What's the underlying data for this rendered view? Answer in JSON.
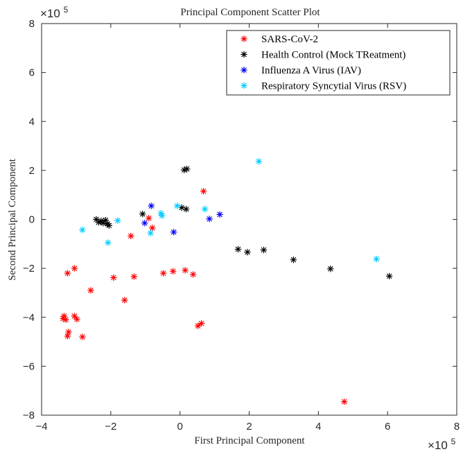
{
  "chart_data": {
    "type": "scatter",
    "title": "Principal Component Scatter Plot",
    "xlabel": "First Principal Component",
    "ylabel": "Second Principal Component",
    "x_exponent_label": "×10",
    "x_exponent_power": "5",
    "y_exponent_label": "×10",
    "y_exponent_power": "5",
    "xlim": [
      -4,
      8
    ],
    "ylim": [
      -8,
      8
    ],
    "xticks": [
      -4,
      -2,
      0,
      2,
      4,
      6,
      8
    ],
    "yticks": [
      -8,
      -6,
      -4,
      -2,
      0,
      2,
      4,
      6,
      8
    ],
    "grid": false,
    "legend_placement": "top-right",
    "series": [
      {
        "name": "SARS-CoV-2",
        "color": "#ff0000",
        "points": [
          {
            "x": -3.38,
            "y": -4.05
          },
          {
            "x": -3.35,
            "y": -3.95
          },
          {
            "x": -3.3,
            "y": -4.1
          },
          {
            "x": -3.25,
            "y": -4.77
          },
          {
            "x": -3.22,
            "y": -4.6
          },
          {
            "x": -3.25,
            "y": -2.2
          },
          {
            "x": -3.05,
            "y": -2.0
          },
          {
            "x": -3.05,
            "y": -3.95
          },
          {
            "x": -2.98,
            "y": -4.08
          },
          {
            "x": -2.82,
            "y": -4.8
          },
          {
            "x": -2.58,
            "y": -2.9
          },
          {
            "x": -1.92,
            "y": -2.38
          },
          {
            "x": -1.6,
            "y": -3.3
          },
          {
            "x": -1.42,
            "y": -0.68
          },
          {
            "x": -1.33,
            "y": -2.34
          },
          {
            "x": -0.9,
            "y": 0.05
          },
          {
            "x": -0.8,
            "y": -0.35
          },
          {
            "x": -0.48,
            "y": -2.2
          },
          {
            "x": -0.2,
            "y": -2.12
          },
          {
            "x": 0.15,
            "y": -2.08
          },
          {
            "x": 0.38,
            "y": -2.25
          },
          {
            "x": 0.52,
            "y": -4.35
          },
          {
            "x": 0.62,
            "y": -4.25
          },
          {
            "x": 0.68,
            "y": 1.15
          },
          {
            "x": 4.75,
            "y": -7.45
          }
        ]
      },
      {
        "name": "Health Control (Mock TReatment)",
        "color": "#000000",
        "points": [
          {
            "x": -2.42,
            "y": 0.0
          },
          {
            "x": -2.35,
            "y": -0.12
          },
          {
            "x": -2.28,
            "y": -0.06
          },
          {
            "x": -2.22,
            "y": -0.15
          },
          {
            "x": -2.15,
            "y": -0.03
          },
          {
            "x": -2.1,
            "y": -0.18
          },
          {
            "x": -2.05,
            "y": -0.25
          },
          {
            "x": -1.08,
            "y": 0.22
          },
          {
            "x": 0.05,
            "y": 0.48
          },
          {
            "x": 0.18,
            "y": 0.42
          },
          {
            "x": 0.12,
            "y": 2.02
          },
          {
            "x": 0.2,
            "y": 2.06
          },
          {
            "x": 1.68,
            "y": -1.22
          },
          {
            "x": 1.95,
            "y": -1.34
          },
          {
            "x": 2.42,
            "y": -1.25
          },
          {
            "x": 3.28,
            "y": -1.65
          },
          {
            "x": 4.35,
            "y": -2.02
          },
          {
            "x": 6.05,
            "y": -2.32
          }
        ]
      },
      {
        "name": "Influenza A Virus (IAV)",
        "color": "#0000ff",
        "points": [
          {
            "x": -1.02,
            "y": -0.15
          },
          {
            "x": -0.83,
            "y": 0.55
          },
          {
            "x": -0.18,
            "y": -0.52
          },
          {
            "x": 0.85,
            "y": 0.02
          },
          {
            "x": 1.15,
            "y": 0.2
          }
        ]
      },
      {
        "name": "Respiratory Syncytial Virus (RSV)",
        "color": "#00ccff",
        "points": [
          {
            "x": -2.82,
            "y": -0.43
          },
          {
            "x": -2.08,
            "y": -0.95
          },
          {
            "x": -1.8,
            "y": -0.05
          },
          {
            "x": -0.85,
            "y": -0.56
          },
          {
            "x": -0.55,
            "y": 0.25
          },
          {
            "x": -0.52,
            "y": 0.15
          },
          {
            "x": -0.08,
            "y": 0.55
          },
          {
            "x": 0.72,
            "y": 0.42
          },
          {
            "x": 2.28,
            "y": 2.37
          },
          {
            "x": 5.68,
            "y": -1.62
          }
        ]
      }
    ]
  }
}
